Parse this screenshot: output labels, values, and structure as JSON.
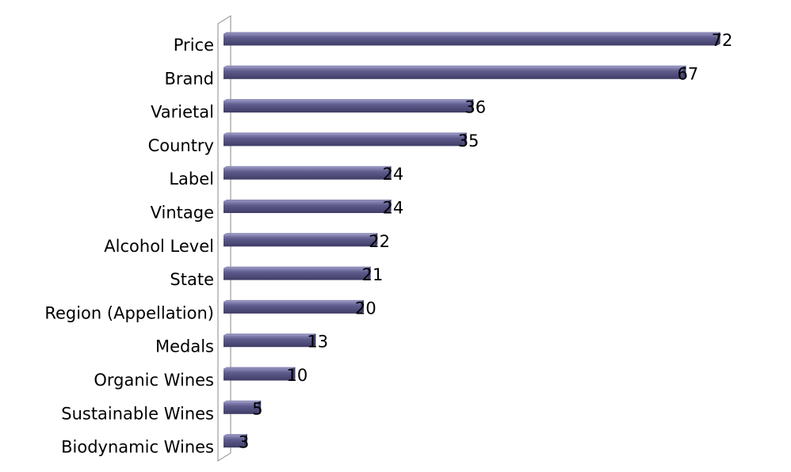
{
  "chart_data": {
    "type": "bar",
    "orientation": "horizontal",
    "categories": [
      "Price",
      "Brand",
      "Varietal",
      "Country",
      "Label",
      "Vintage",
      "Alcohol Level",
      "State",
      "Region (Appellation)",
      "Medals",
      "Organic Wines",
      "Sustainable Wines",
      "Biodynamic Wines"
    ],
    "values": [
      72,
      67,
      36,
      35,
      24,
      24,
      22,
      21,
      20,
      13,
      10,
      5,
      3
    ],
    "title": "",
    "xlabel": "",
    "ylabel": "",
    "xlim": [
      0,
      74
    ],
    "grid": false,
    "legend": "none",
    "data_labels": true,
    "bar_color": "#5e5b8c",
    "bar_highlight_color": "#8c8ab8",
    "bar_shadow_color": "#3f3d66"
  }
}
